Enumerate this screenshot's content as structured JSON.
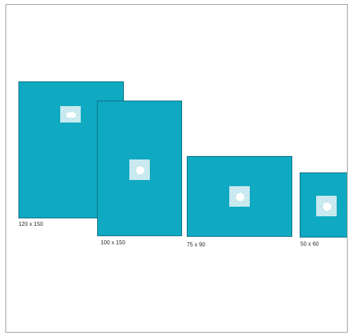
{
  "colors": {
    "drape": "#0fa9c2",
    "drape_border": "#0b6f83",
    "background": "#ffffff",
    "frame_border": "#9a9a9a"
  },
  "drapes": [
    {
      "label": "120 x 150",
      "opening_shape": "slot"
    },
    {
      "label": "100 x 150",
      "opening_shape": "round"
    },
    {
      "label": "75 x 90",
      "opening_shape": "round"
    },
    {
      "label": "50 x 60",
      "opening_shape": "round"
    }
  ]
}
